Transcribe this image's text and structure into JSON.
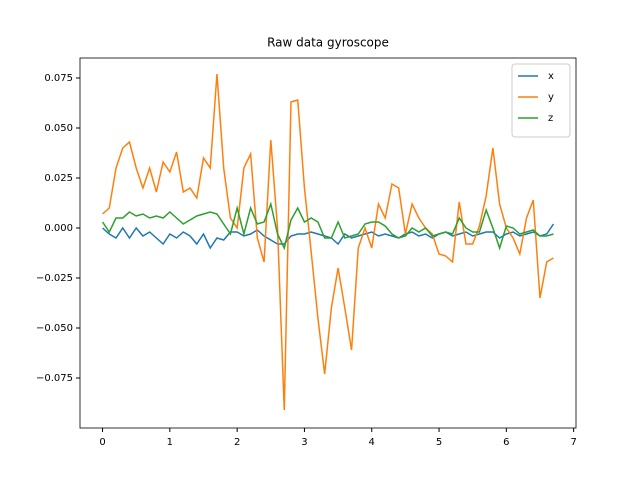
{
  "chart_data": {
    "type": "line",
    "title": "Raw data gyroscope",
    "x": [
      0,
      0.1,
      0.2,
      0.3,
      0.4,
      0.5,
      0.6,
      0.7,
      0.8,
      0.9,
      1.0,
      1.1,
      1.2,
      1.3,
      1.4,
      1.5,
      1.6,
      1.7,
      1.8,
      1.9,
      2.0,
      2.1,
      2.2,
      2.3,
      2.4,
      2.5,
      2.6,
      2.7,
      2.8,
      2.9,
      3.0,
      3.1,
      3.2,
      3.3,
      3.4,
      3.5,
      3.6,
      3.7,
      3.8,
      3.9,
      4.0,
      4.1,
      4.2,
      4.3,
      4.4,
      4.5,
      4.6,
      4.7,
      4.8,
      4.9,
      5.0,
      5.1,
      5.2,
      5.3,
      5.4,
      5.5,
      5.6,
      5.7,
      5.8,
      5.9,
      6.0,
      6.1,
      6.2,
      6.3,
      6.4,
      6.5,
      6.6,
      6.7
    ],
    "series": [
      {
        "name": "x",
        "color": "#1f77b4",
        "values": [
          0,
          -0.003,
          -0.005,
          0,
          -0.005,
          0,
          -0.004,
          -0.002,
          -0.005,
          -0.008,
          -0.003,
          -0.005,
          -0.002,
          -0.004,
          -0.008,
          -0.003,
          -0.01,
          -0.005,
          -0.006,
          -0.002,
          -0.002,
          -0.004,
          -0.003,
          -0.001,
          -0.004,
          -0.006,
          -0.008,
          -0.008,
          -0.004,
          -0.003,
          -0.003,
          -0.002,
          -0.003,
          -0.004,
          -0.005,
          -0.008,
          -0.003,
          -0.005,
          -0.004,
          -0.003,
          -0.002,
          -0.004,
          -0.003,
          -0.004,
          -0.005,
          -0.003,
          -0.002,
          -0.004,
          -0.003,
          -0.005,
          -0.003,
          -0.002,
          -0.004,
          -0.003,
          -0.002,
          -0.004,
          -0.003,
          -0.002,
          -0.002,
          -0.005,
          -0.003,
          -0.002,
          -0.004,
          -0.003,
          -0.002,
          -0.004,
          -0.003,
          0.002
        ]
      },
      {
        "name": "y",
        "color": "#ff7f0e",
        "values": [
          0.007,
          0.01,
          0.03,
          0.04,
          0.043,
          0.03,
          0.02,
          0.03,
          0.018,
          0.033,
          0.028,
          0.038,
          0.018,
          0.02,
          0.015,
          0.035,
          0.03,
          0.077,
          0.03,
          0.005,
          0.0,
          0.03,
          0.037,
          -0.005,
          -0.017,
          0.044,
          0.0,
          -0.091,
          0.063,
          0.064,
          0.02,
          -0.012,
          -0.045,
          -0.073,
          -0.04,
          -0.02,
          -0.04,
          -0.061,
          -0.01,
          0.0,
          -0.01,
          0.012,
          0.005,
          0.022,
          0.02,
          -0.003,
          0.012,
          0.005,
          0.0,
          -0.003,
          -0.013,
          -0.014,
          -0.017,
          0.013,
          -0.008,
          -0.008,
          0.001,
          0.016,
          0.04,
          0.012,
          0.0,
          -0.005,
          -0.013,
          0.005,
          0.014,
          -0.035,
          -0.017,
          -0.015
        ]
      },
      {
        "name": "z",
        "color": "#2ca02c",
        "values": [
          0.003,
          -0.002,
          0.005,
          0.005,
          0.008,
          0.006,
          0.007,
          0.005,
          0.006,
          0.005,
          0.008,
          0.005,
          0.002,
          0.004,
          0.006,
          0.007,
          0.008,
          0.007,
          0.002,
          -0.003,
          0.01,
          -0.003,
          0.01,
          0.002,
          0.003,
          0.012,
          -0.003,
          -0.01,
          0.004,
          0.01,
          0.003,
          0.005,
          0.003,
          -0.005,
          -0.005,
          0.003,
          -0.005,
          -0.004,
          -0.003,
          0.002,
          0.003,
          0.003,
          0.001,
          -0.003,
          -0.005,
          -0.004,
          0.0,
          -0.002,
          0.0,
          -0.004,
          -0.003,
          -0.002,
          -0.003,
          0.005,
          0.0,
          -0.002,
          -0.002,
          0.009,
          0.0,
          -0.01,
          0.001,
          0.0,
          -0.003,
          -0.002,
          -0.001,
          -0.004,
          -0.004,
          -0.003
        ]
      }
    ],
    "xlim": [
      -0.335,
      7.035
    ],
    "ylim": [
      -0.1,
      0.085
    ],
    "xticks": [
      0,
      1,
      2,
      3,
      4,
      5,
      6,
      7
    ],
    "yticks": [
      {
        "value": -0.075,
        "label": "−0.075"
      },
      {
        "value": -0.05,
        "label": "−0.050"
      },
      {
        "value": -0.025,
        "label": "−0.025"
      },
      {
        "value": 0,
        "label": "0.000"
      },
      {
        "value": 0.025,
        "label": "0.025"
      },
      {
        "value": 0.05,
        "label": "0.050"
      },
      {
        "value": 0.075,
        "label": "0.075"
      }
    ],
    "legend": "upper right"
  }
}
